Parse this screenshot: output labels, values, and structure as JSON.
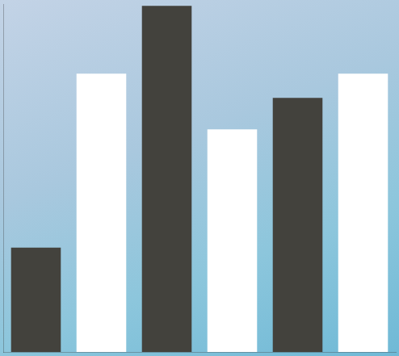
{
  "chart_data": {
    "type": "bar",
    "categories": [
      null,
      null,
      null,
      null,
      null,
      null
    ],
    "values": [
      30,
      80,
      99.5,
      64,
      73,
      80
    ],
    "colors": [
      "#43423d",
      "#ffffff",
      "#43423d",
      "#ffffff",
      "#43423d",
      "#ffffff"
    ],
    "ylim": [
      0,
      100
    ],
    "grid": false,
    "tick_labels": false
  }
}
